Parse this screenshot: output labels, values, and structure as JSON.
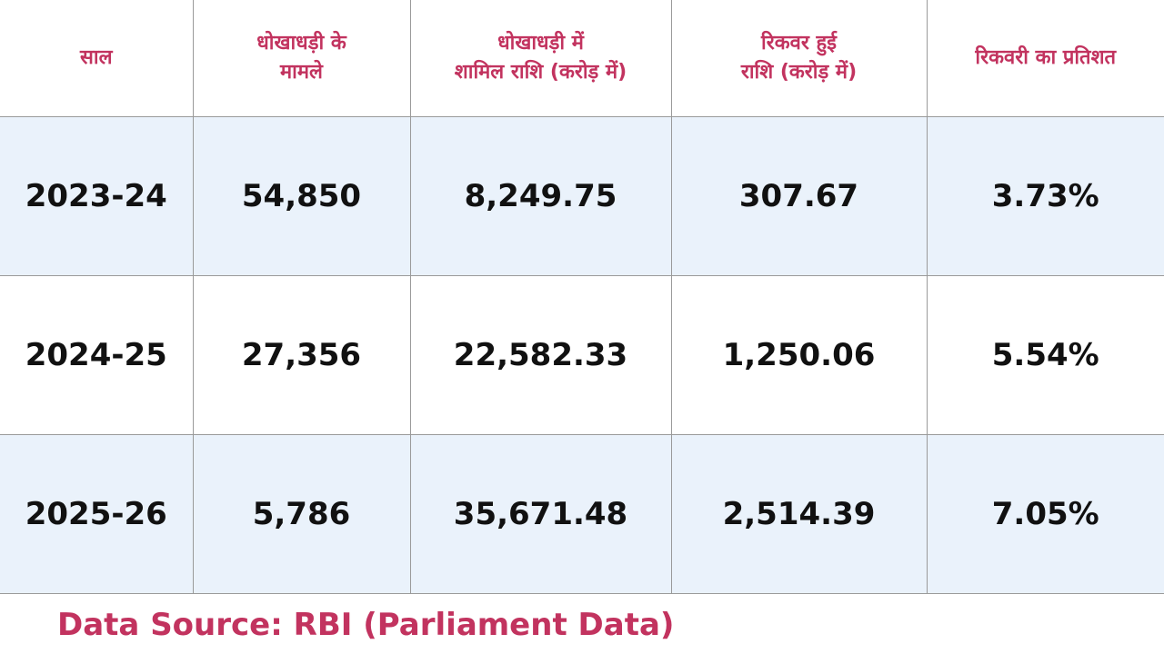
{
  "table": {
    "headers": [
      [
        "साल"
      ],
      [
        "धोखाधड़ी के",
        "मामले"
      ],
      [
        "धोखाधड़ी में",
        "शामिल राशि (करोड़ में)"
      ],
      [
        "रिकवर हुई",
        "राशि (करोड़ में)"
      ],
      [
        "रिकवरी का प्रतिशत"
      ]
    ],
    "rows": [
      [
        "2023-24",
        "54,850",
        "8,249.75",
        "307.67",
        "3.73%"
      ],
      [
        "2024-25",
        "27,356",
        "22,582.33",
        "1,250.06",
        "5.54%"
      ],
      [
        "2025-26",
        "5,786",
        "35,671.48",
        "2,514.39",
        "7.05%"
      ]
    ]
  },
  "source": "Data Source: RBI (Parliament Data)"
}
